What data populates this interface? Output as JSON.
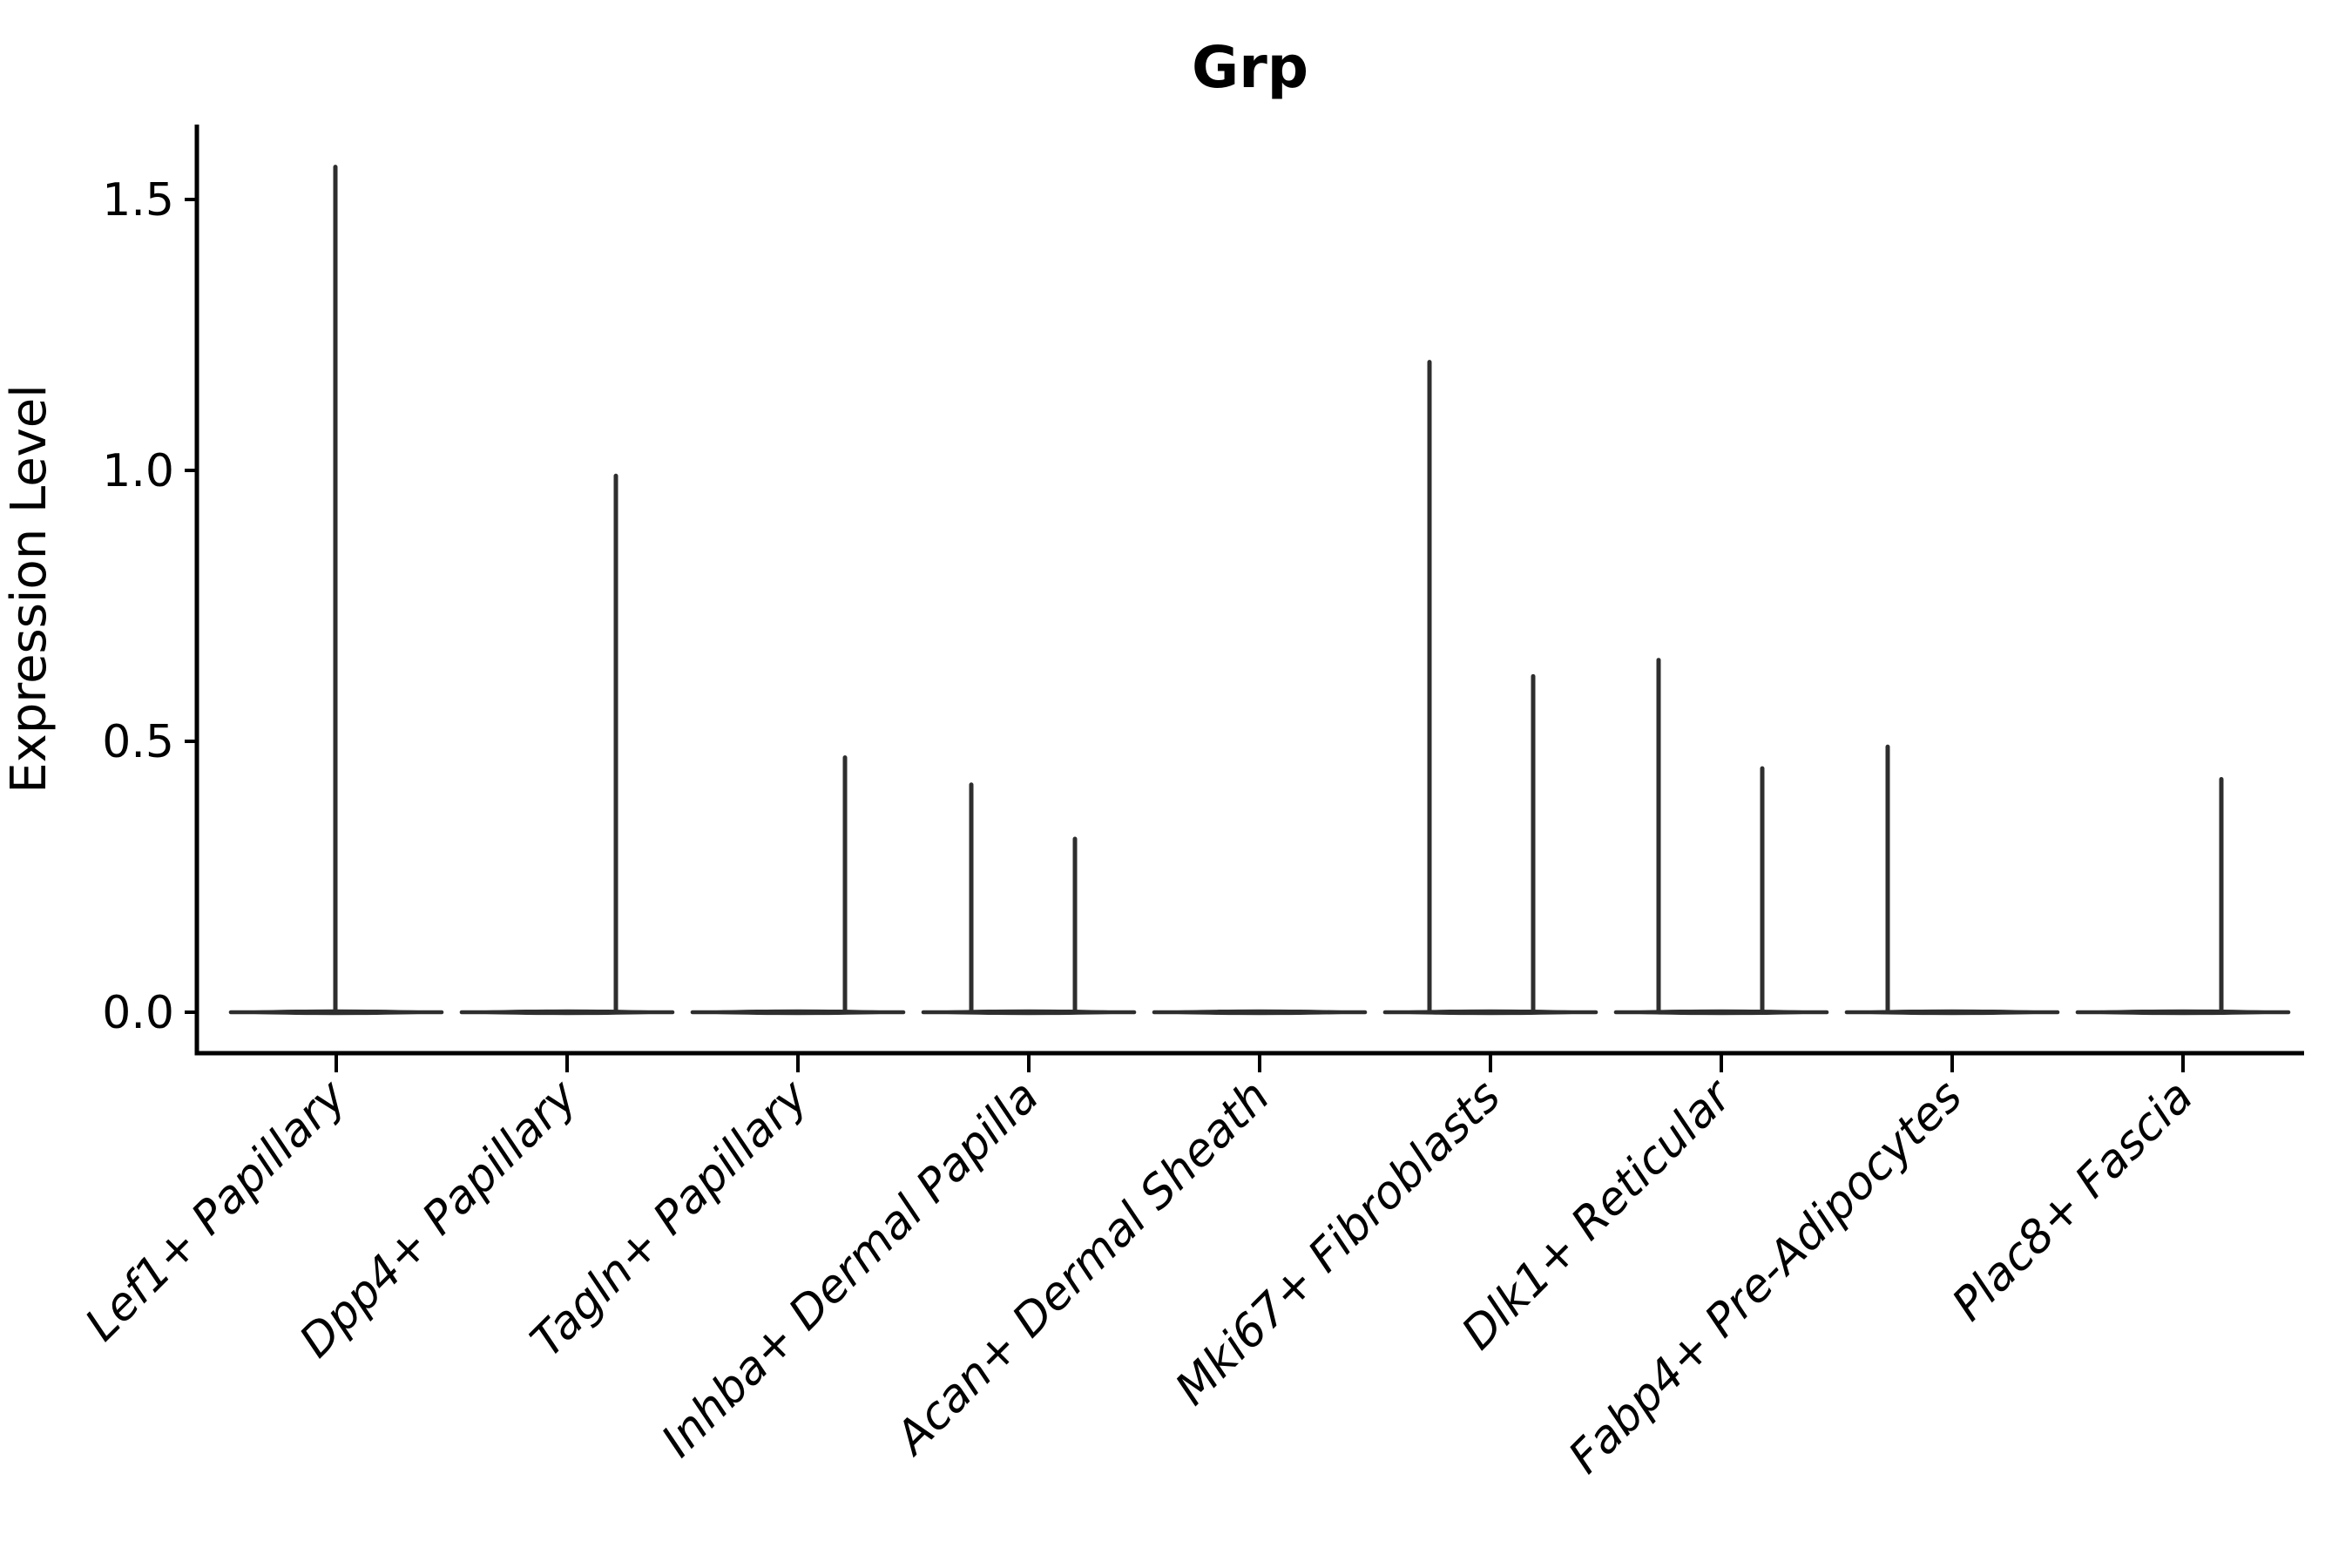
{
  "chart_data": {
    "type": "violin",
    "title": "Grp",
    "xlabel": "",
    "ylabel": "Expression Level",
    "ylim": [
      -0.08,
      1.64
    ],
    "grid": false,
    "legend": "none",
    "background": "#ffffff",
    "colors": {
      "violin": "#2e2e2e",
      "axis": "#000000",
      "text": "#000000"
    },
    "yticks": [
      {
        "label": "0.0",
        "value": 0.0
      },
      {
        "label": "0.5",
        "value": 0.5
      },
      {
        "label": "1.0",
        "value": 1.0
      },
      {
        "label": "1.5",
        "value": 1.5
      }
    ],
    "categories": [
      "Lef1+ Papillary",
      "Dpp4+ Papillary",
      "Tagln+ Papillary",
      "Inhba+ Dermal Papilla",
      "Acan+ Dermal Sheath",
      "Mki67+ Fibroblasts",
      "Dlk1+ Reticular",
      "Fabp4+ Pre-Adipocytes",
      "Plac8+ Fascia"
    ],
    "series": [
      {
        "category": "Lef1+ Papillary",
        "baseline_density": 1,
        "spikes": [
          {
            "x": 385,
            "max": 1.56
          }
        ]
      },
      {
        "category": "Dpp4+ Papillary",
        "baseline_density": 1,
        "spikes": [
          {
            "x": 707,
            "max": 0.99
          }
        ]
      },
      {
        "category": "Tagln+ Papillary",
        "baseline_density": 1,
        "spikes": [
          {
            "x": 970,
            "max": 0.47
          }
        ]
      },
      {
        "category": "Inhba+ Dermal Papilla",
        "baseline_density": 1,
        "spikes": [
          {
            "x": 1115,
            "max": 0.42
          },
          {
            "x": 1234,
            "max": 0.32
          }
        ]
      },
      {
        "category": "Acan+ Dermal Sheath",
        "baseline_density": 1,
        "spikes": []
      },
      {
        "category": "Mki67+ Fibroblasts",
        "baseline_density": 1,
        "spikes": [
          {
            "x": 1641,
            "max": 1.2
          },
          {
            "x": 1760,
            "max": 0.62
          }
        ]
      },
      {
        "category": "Dlk1+ Reticular",
        "baseline_density": 1,
        "spikes": [
          {
            "x": 1904,
            "max": 0.65
          },
          {
            "x": 2023,
            "max": 0.45
          }
        ]
      },
      {
        "category": "Fabp4+ Pre-Adipocytes",
        "baseline_density": 1,
        "spikes": [
          {
            "x": 2167,
            "max": 0.49
          }
        ]
      },
      {
        "category": "Plac8+ Fascia",
        "baseline_density": 1,
        "spikes": [
          {
            "x": 2550,
            "max": 0.43
          }
        ]
      }
    ]
  }
}
